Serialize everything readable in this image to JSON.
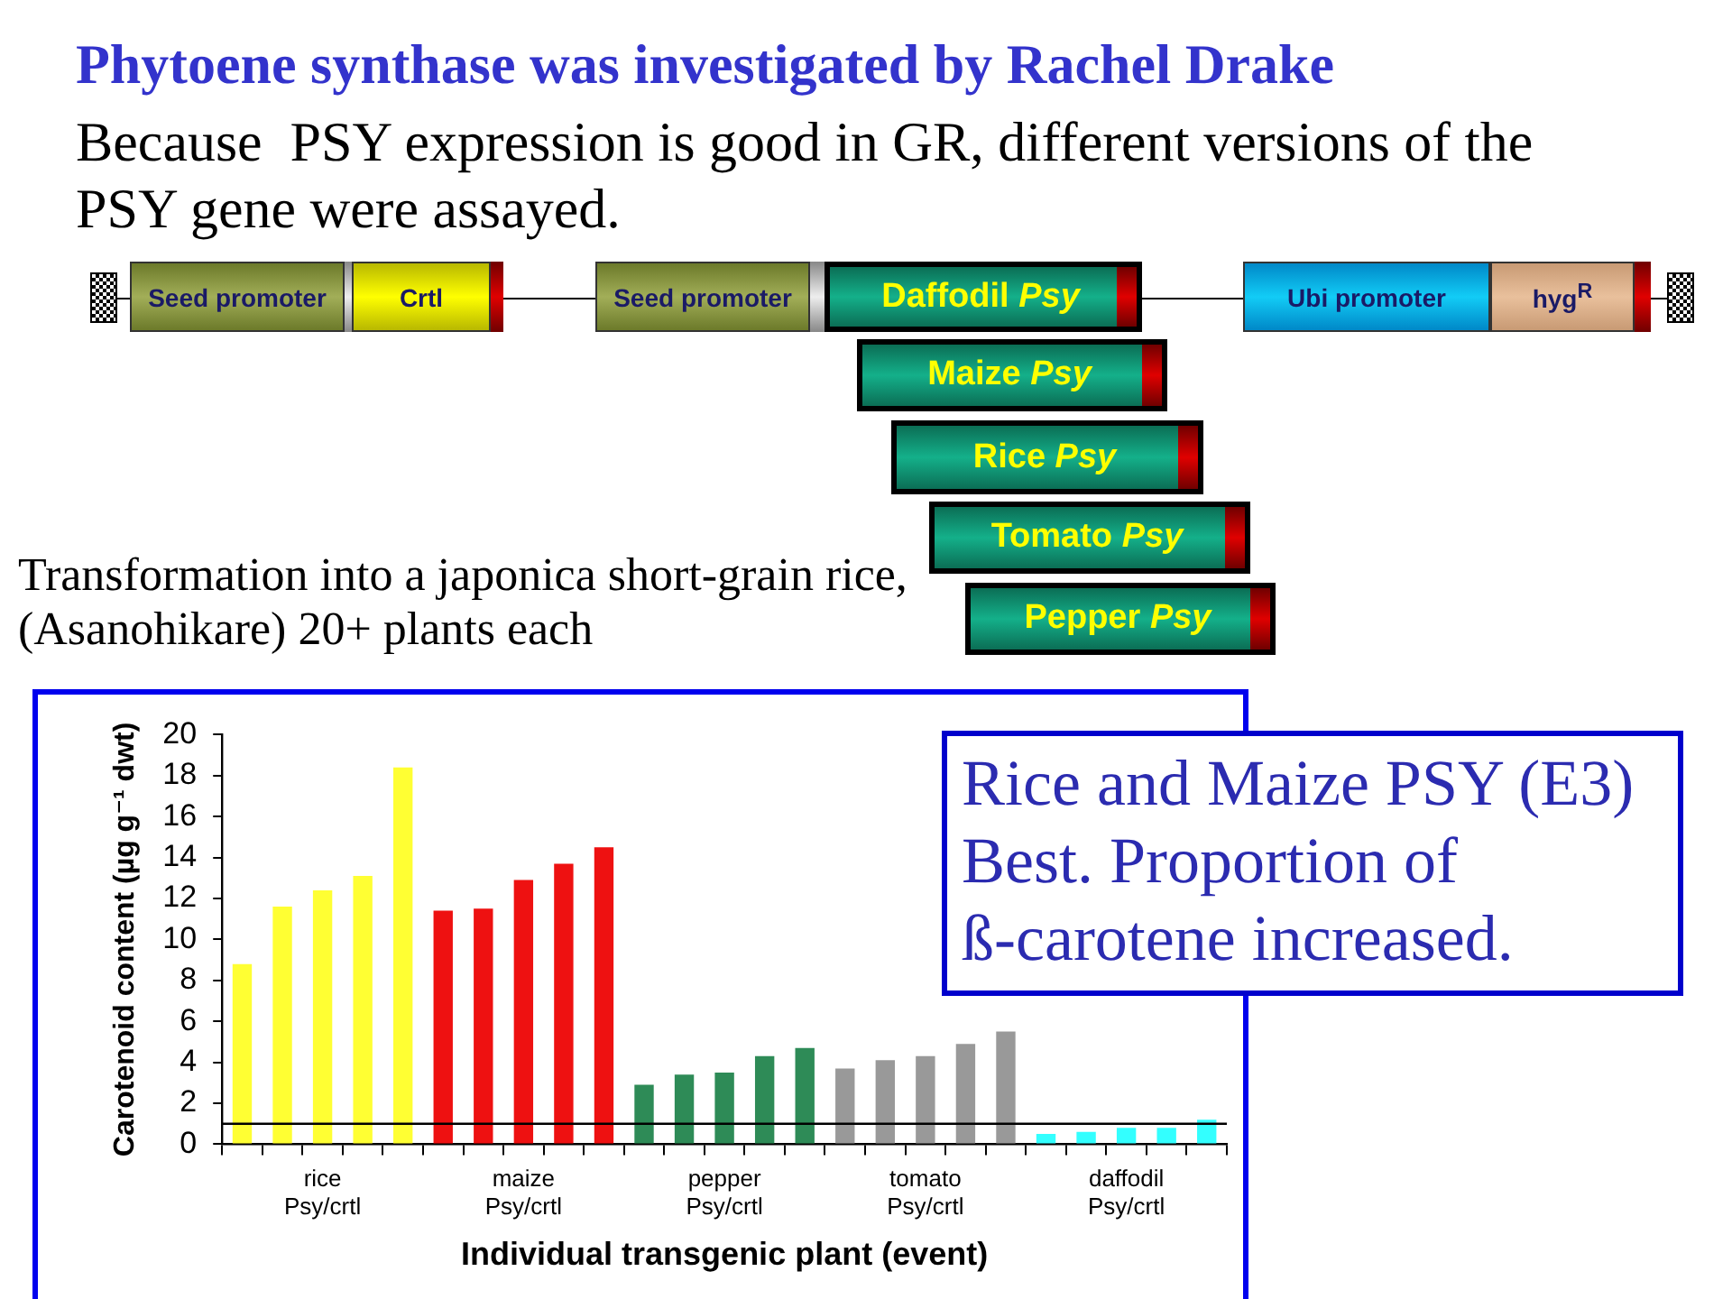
{
  "chart_data": {
    "type": "bar",
    "title": "Phytoene synthase was investigated by Rachel Drake",
    "subtitle": "Because  PSY expression is good in GR, different versions of the PSY gene were assayed.",
    "xlabel": "Individual transgenic plant (event)",
    "ylabel": "Carotenoid content (µg g⁻¹ dwt)",
    "categories": [
      null,
      null,
      "rice Psy/crtl",
      null,
      null,
      null,
      null,
      "maize Psy/crtl",
      null,
      null,
      null,
      null,
      "pepper Psy/crtl",
      null,
      null,
      null,
      null,
      "tomato Psy/crtl",
      null,
      null,
      null,
      null,
      "daffodil Psy/crtl",
      null,
      null
    ],
    "values": [
      8.8,
      11.6,
      12.4,
      13.1,
      18.4,
      11.4,
      11.5,
      12.9,
      13.7,
      14.5,
      2.9,
      3.4,
      3.5,
      4.3,
      4.7,
      3.7,
      4.1,
      4.3,
      4.9,
      5.5,
      0.5,
      0.6,
      0.8,
      0.8,
      1.2
    ],
    "colors": [
      "#ffff33",
      "#ffff33",
      "#ffff33",
      "#ffff33",
      "#ffff33",
      "#ee1111",
      "#ee1111",
      "#ee1111",
      "#ee1111",
      "#ee1111",
      "#2e8b57",
      "#2e8b57",
      "#2e8b57",
      "#2e8b57",
      "#2e8b57",
      "#999999",
      "#999999",
      "#999999",
      "#999999",
      "#999999",
      "#33ffff",
      "#33ffff",
      "#33ffff",
      "#33ffff",
      "#33ffff"
    ],
    "ylim": [
      0,
      20
    ],
    "yticks": [
      0,
      2,
      4,
      6,
      8,
      10,
      12,
      14,
      16,
      18,
      20
    ],
    "ref_lines": [
      {
        "axis": "y",
        "value": 1,
        "color": "#000000"
      }
    ],
    "annotations": [
      "Seed promoter",
      "Crtl",
      "Seed promoter",
      "Daffodil Psy",
      "Maize Psy",
      "Rice Psy",
      "Tomato Psy",
      "Pepper Psy",
      "Ubi promoter",
      "hyg$^{R}$",
      "Transformation into a japonica short-grain rice,",
      "(Asanohikare) 20+ plants each",
      "Rice and Maize PSY (E3) Best. Proportion of ß-carotene increased."
    ]
  }
}
